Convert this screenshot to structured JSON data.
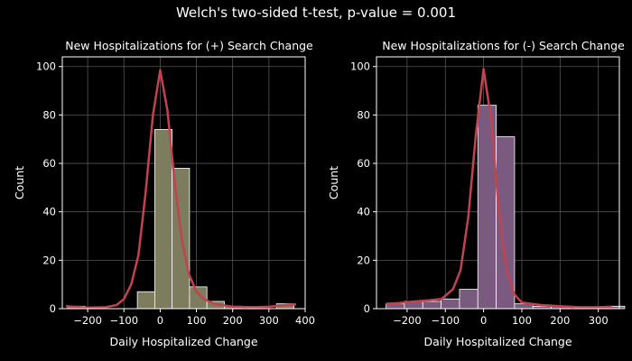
{
  "suptitle": "Welch's two-sided t-test, p-value = 0.001",
  "colors": {
    "background": "#000000",
    "grid": "#555555",
    "axes": "#ffffff",
    "kde": "#c0434f"
  },
  "chart_data": [
    {
      "type": "bar",
      "subtype": "histogram-with-kde",
      "title": "New Hospitalizations for (+) Search Change",
      "xlabel": "Daily Hospitalized Change",
      "ylabel": "Count",
      "xlim": [
        -270,
        400
      ],
      "ylim": [
        0,
        104
      ],
      "xticks": [
        -200,
        -100,
        0,
        100,
        200,
        300,
        400
      ],
      "yticks": [
        0,
        20,
        40,
        60,
        80,
        100
      ],
      "grid": true,
      "bar_color": "#7e7c5e",
      "bin_edges": [
        -255,
        -207,
        -159,
        -111,
        -63,
        -15,
        33,
        81,
        129,
        177,
        225,
        273,
        321,
        369
      ],
      "counts": [
        1,
        0,
        0,
        0,
        7,
        74,
        58,
        9,
        3,
        1,
        0,
        0,
        2
      ],
      "kde": [
        [
          -260,
          1.0
        ],
        [
          -230,
          0.7
        ],
        [
          -200,
          0.4
        ],
        [
          -150,
          0.6
        ],
        [
          -120,
          1.5
        ],
        [
          -100,
          4
        ],
        [
          -80,
          10
        ],
        [
          -60,
          22
        ],
        [
          -40,
          48
        ],
        [
          -20,
          80
        ],
        [
          0,
          98.5
        ],
        [
          20,
          82
        ],
        [
          40,
          52
        ],
        [
          60,
          28
        ],
        [
          80,
          14
        ],
        [
          100,
          7
        ],
        [
          120,
          4
        ],
        [
          150,
          2
        ],
        [
          200,
          0.8
        ],
        [
          260,
          0.6
        ],
        [
          300,
          0.8
        ],
        [
          340,
          1.4
        ],
        [
          375,
          1.8
        ]
      ]
    },
    {
      "type": "bar",
      "subtype": "histogram-with-kde",
      "title": "New Hospitalizations for (-) Search Change",
      "xlabel": "Daily Hospitalized Change",
      "ylabel": "Count",
      "xlim": [
        -280,
        355
      ],
      "ylim": [
        0,
        104
      ],
      "xticks": [
        -200,
        -100,
        0,
        100,
        200,
        300
      ],
      "yticks": [
        0,
        20,
        40,
        60,
        80,
        100
      ],
      "grid": true,
      "bar_color": "#7a5b7f",
      "bin_edges": [
        -255,
        -207,
        -159,
        -111,
        -63,
        -15,
        33,
        81,
        129,
        177,
        225,
        273,
        321,
        369
      ],
      "counts": [
        2,
        3,
        3,
        4,
        8,
        84,
        71,
        2,
        1,
        1,
        0,
        0,
        1
      ],
      "kde": [
        [
          -255,
          2.0
        ],
        [
          -220,
          2.3
        ],
        [
          -180,
          3.0
        ],
        [
          -140,
          3.5
        ],
        [
          -110,
          4
        ],
        [
          -80,
          8
        ],
        [
          -60,
          16
        ],
        [
          -40,
          38
        ],
        [
          -20,
          72
        ],
        [
          0,
          99
        ],
        [
          20,
          78
        ],
        [
          40,
          40
        ],
        [
          60,
          16
        ],
        [
          80,
          6
        ],
        [
          100,
          2.5
        ],
        [
          150,
          1.5
        ],
        [
          200,
          1.0
        ],
        [
          250,
          0.6
        ],
        [
          300,
          0.6
        ],
        [
          335,
          0.8
        ]
      ]
    }
  ]
}
